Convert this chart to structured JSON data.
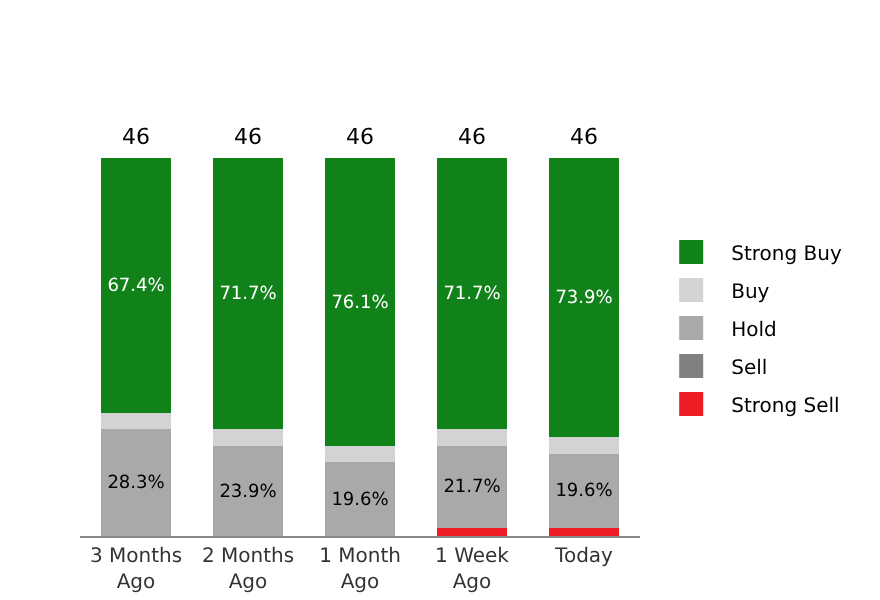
{
  "chart_data": {
    "type": "bar",
    "stacked": true,
    "categories": [
      "3 Months Ago",
      "2 Months Ago",
      "1 Month Ago",
      "1 Week Ago",
      "Today"
    ],
    "series": [
      {
        "name": "Strong Sell",
        "color": "#ee1c24",
        "values": [
          0,
          0,
          0,
          2.2,
          2.2
        ],
        "value_labels": [
          null,
          null,
          null,
          null,
          null
        ]
      },
      {
        "name": "Sell",
        "color": "#808080",
        "values": [
          0,
          0,
          0,
          0,
          0
        ],
        "value_labels": [
          null,
          null,
          null,
          null,
          null
        ]
      },
      {
        "name": "Hold",
        "color": "#a9a9a9",
        "values": [
          28.3,
          23.9,
          19.6,
          21.7,
          19.6
        ],
        "value_labels": [
          "28.3%",
          "23.9%",
          "19.6%",
          "21.7%",
          "19.6%"
        ]
      },
      {
        "name": "Buy",
        "color": "#d3d3d3",
        "values": [
          4.3,
          4.4,
          4.3,
          4.4,
          4.3
        ],
        "value_labels": [
          null,
          null,
          null,
          null,
          null
        ]
      },
      {
        "name": "Strong Buy",
        "color": "#11821a",
        "values": [
          67.4,
          71.7,
          76.1,
          71.7,
          73.9
        ],
        "value_labels": [
          "67.4%",
          "71.7%",
          "76.1%",
          "71.7%",
          "73.9%"
        ]
      }
    ],
    "annotations": [
      {
        "text": "46",
        "x": "3 Months Ago",
        "y": 100
      },
      {
        "text": "46",
        "x": "2 Months Ago",
        "y": 100
      },
      {
        "text": "46",
        "x": "1 Month Ago",
        "y": 100
      },
      {
        "text": "46",
        "x": "1 Week Ago",
        "y": 100
      },
      {
        "text": "46",
        "x": "Today",
        "y": 100
      }
    ],
    "legend": "right"
  }
}
